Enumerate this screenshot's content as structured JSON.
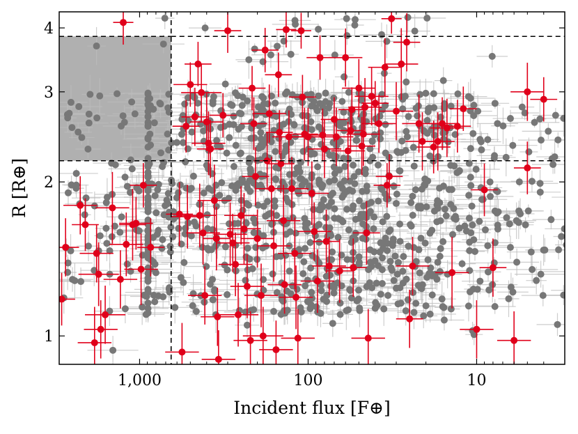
{
  "chart_data": {
    "type": "scatter",
    "title": "",
    "xlabel": "Incident flux [F⊕]",
    "ylabel": "R [R⊕]",
    "x_scale": "log",
    "x_reversed": true,
    "y_scale": "log",
    "xlim": [
      3000,
      3
    ],
    "ylim": [
      0.88,
      4.3
    ],
    "x_ticks": [
      {
        "value": 1000,
        "label": "1,000"
      },
      {
        "value": 100,
        "label": "100"
      },
      {
        "value": 10,
        "label": "10"
      }
    ],
    "y_ticks": [
      {
        "value": 1,
        "label": "1"
      },
      {
        "value": 2,
        "label": "2"
      },
      {
        "value": 3,
        "label": "3"
      },
      {
        "value": 4,
        "label": "4"
      }
    ],
    "highlight_region": {
      "x": [
        3000,
        650
      ],
      "y": [
        2.2,
        3.85
      ],
      "color": "#b0b0b0"
    },
    "dashed_lines": {
      "x": [
        650
      ],
      "y": [
        2.2,
        3.85
      ]
    },
    "grid": false,
    "colors": {
      "background_points": "#777777",
      "highlighted_points": "#e0001a",
      "error_bars_gray": "#bdbdbd",
      "error_bars_red": "#e0001a"
    },
    "series": [
      {
        "values": [
          [
            2900,
            1.18,
            0.04,
            0.18
          ],
          [
            2750,
            1.49,
            0.04,
            0.2
          ],
          [
            2250,
            1.8,
            0.05,
            0.2
          ],
          [
            2100,
            1.65,
            0.04,
            0.18
          ],
          [
            1800,
            1.45,
            0.05,
            0.2
          ],
          [
            1750,
            1.32,
            0.06,
            0.22
          ],
          [
            1850,
            0.97,
            0.05,
            0.25
          ],
          [
            1600,
            1.1,
            0.06,
            0.2
          ],
          [
            1450,
            1.78,
            0.05,
            0.25
          ],
          [
            1250,
            4.1,
            0.03,
            0.15
          ],
          [
            1200,
            1.51,
            0.05,
            0.22
          ],
          [
            1300,
            1.29,
            0.05,
            0.2
          ],
          [
            1100,
            1.65,
            0.04,
            0.25
          ],
          [
            1050,
            1.66,
            0.05,
            0.18
          ],
          [
            980,
            1.35,
            0.05,
            0.25
          ],
          [
            950,
            1.97,
            0.04,
            0.15
          ],
          [
            860,
            1.49,
            0.04,
            0.2
          ],
          [
            580,
            1.73,
            0.04,
            0.22
          ],
          [
            560,
            0.93,
            0.05,
            0.2
          ],
          [
            530,
            2.57,
            0.04,
            0.18
          ],
          [
            500,
            3.1,
            0.05,
            0.15
          ],
          [
            520,
            1.71,
            0.05,
            0.22
          ],
          [
            470,
            2.68,
            0.04,
            0.2
          ],
          [
            450,
            3.4,
            0.04,
            0.15
          ],
          [
            430,
            2.99,
            0.06,
            0.2
          ],
          [
            440,
            1.72,
            0.05,
            0.22
          ],
          [
            420,
            1.59,
            0.05,
            0.22
          ],
          [
            410,
            1.2,
            0.05,
            0.2
          ],
          [
            400,
            2.62,
            0.05,
            0.2
          ],
          [
            390,
            2.38,
            0.05,
            0.22
          ],
          [
            380,
            2.32,
            0.04,
            0.2
          ],
          [
            360,
            1.84,
            0.05,
            0.25
          ],
          [
            350,
            1.55,
            0.04,
            0.22
          ],
          [
            345,
            1.09,
            0.05,
            0.2
          ],
          [
            340,
            0.9,
            0.05,
            0.2
          ],
          [
            320,
            2.7,
            0.04,
            0.15
          ],
          [
            300,
            3.95,
            0.04,
            0.15
          ],
          [
            290,
            1.58,
            0.05,
            0.22
          ],
          [
            280,
            1.52,
            0.05,
            0.2
          ],
          [
            270,
            1.38,
            0.05,
            0.22
          ],
          [
            260,
            1.1,
            0.06,
            0.22
          ],
          [
            250,
            1.72,
            0.05,
            0.2
          ],
          [
            240,
            1.62,
            0.05,
            0.25
          ],
          [
            230,
            1.25,
            0.05,
            0.22
          ],
          [
            220,
            0.98,
            0.05,
            0.2
          ],
          [
            215,
            3.05,
            0.04,
            0.15
          ],
          [
            210,
            2.6,
            0.04,
            0.18
          ],
          [
            205,
            2.05,
            0.04,
            0.2
          ],
          [
            200,
            1.55,
            0.05,
            0.2
          ],
          [
            190,
            1.2,
            0.05,
            0.22
          ],
          [
            185,
            1.0,
            0.06,
            0.2
          ],
          [
            180,
            3.62,
            0.04,
            0.15
          ],
          [
            175,
            2.2,
            0.04,
            0.2
          ],
          [
            170,
            2.72,
            0.05,
            0.2
          ],
          [
            165,
            1.94,
            0.05,
            0.22
          ],
          [
            160,
            1.5,
            0.05,
            0.25
          ],
          [
            155,
            0.94,
            0.05,
            0.2
          ],
          [
            150,
            3.24,
            0.04,
            0.15
          ],
          [
            148,
            2.5,
            0.04,
            0.15
          ],
          [
            145,
            2.17,
            0.04,
            0.2
          ],
          [
            140,
            1.68,
            0.05,
            0.25
          ],
          [
            138,
            1.26,
            0.05,
            0.2
          ],
          [
            135,
            3.97,
            0.03,
            0.12
          ],
          [
            130,
            2.45,
            0.05,
            0.18
          ],
          [
            125,
            1.94,
            0.05,
            0.22
          ],
          [
            120,
            1.45,
            0.05,
            0.25
          ],
          [
            118,
            1.19,
            0.05,
            0.22
          ],
          [
            115,
            0.99,
            0.05,
            0.2
          ],
          [
            110,
            3.95,
            0.03,
            0.12
          ],
          [
            108,
            2.93,
            0.04,
            0.15
          ],
          [
            105,
            2.48,
            0.04,
            0.18
          ],
          [
            100,
            2.45,
            0.05,
            0.2
          ],
          [
            95,
            1.9,
            0.05,
            0.22
          ],
          [
            92,
            1.6,
            0.05,
            0.2
          ],
          [
            88,
            1.28,
            0.05,
            0.22
          ],
          [
            85,
            3.5,
            0.04,
            0.15
          ],
          [
            82,
            2.47,
            0.04,
            0.18
          ],
          [
            80,
            2.32,
            0.05,
            0.2
          ],
          [
            78,
            1.53,
            0.04,
            0.22
          ],
          [
            75,
            1.37,
            0.05,
            0.2
          ],
          [
            70,
            2.65,
            0.04,
            0.15
          ],
          [
            68,
            2.45,
            0.05,
            0.2
          ],
          [
            65,
            1.34,
            0.04,
            0.22
          ],
          [
            60,
            3.5,
            0.05,
            0.2
          ],
          [
            58,
            2.3,
            0.05,
            0.2
          ],
          [
            56,
            2.52,
            0.04,
            0.15
          ],
          [
            55,
            2.77,
            0.04,
            0.15
          ],
          [
            54,
            1.36,
            0.04,
            0.2
          ],
          [
            50,
            3.05,
            0.05,
            0.2
          ],
          [
            48,
            2.35,
            0.04,
            0.2
          ],
          [
            47,
            2.48,
            0.05,
            0.22
          ],
          [
            46,
            2.8,
            0.05,
            0.2
          ],
          [
            45,
            1.59,
            0.04,
            0.22
          ],
          [
            44,
            0.99,
            0.05,
            0.2
          ],
          [
            42,
            2.94,
            0.05,
            0.2
          ],
          [
            40,
            2.85,
            0.04,
            0.15
          ],
          [
            38,
            2.6,
            0.05,
            0.2
          ],
          [
            35,
            3.35,
            0.05,
            0.2
          ],
          [
            34,
            1.97,
            0.04,
            0.15
          ],
          [
            33,
            2.05,
            0.04,
            0.15
          ],
          [
            32,
            4.17,
            0.03,
            0.1
          ],
          [
            30,
            2.75,
            0.05,
            0.2
          ],
          [
            28,
            3.4,
            0.05,
            0.25
          ],
          [
            26,
            3.75,
            0.04,
            0.2
          ],
          [
            25,
            1.08,
            0.04,
            0.2
          ],
          [
            24,
            1.37,
            0.05,
            0.2
          ],
          [
            22,
            2.6,
            0.05,
            0.2
          ],
          [
            21,
            2.4,
            0.05,
            0.2
          ],
          [
            18,
            2.34,
            0.05,
            0.18
          ],
          [
            17,
            2.4,
            0.05,
            0.2
          ],
          [
            16,
            2.6,
            0.04,
            0.18
          ],
          [
            15,
            2.55,
            0.05,
            0.2
          ],
          [
            14,
            1.33,
            0.05,
            0.25
          ],
          [
            13,
            2.57,
            0.04,
            0.18
          ],
          [
            12,
            2.78,
            0.04,
            0.15
          ],
          [
            10,
            1.03,
            0.05,
            0.2
          ],
          [
            9,
            1.93,
            0.04,
            0.18
          ],
          [
            8,
            1.36,
            0.04,
            0.2
          ],
          [
            6,
            0.98,
            0.05,
            0.2
          ],
          [
            5,
            2.13,
            0.04,
            0.18
          ],
          [
            5,
            3.0,
            0.05,
            0.2
          ],
          [
            4,
            2.9,
            0.04,
            0.15
          ],
          [
            1700,
            1.03,
            0.05,
            0.2
          ]
        ]
      }
    ],
    "background_point_count": 1100,
    "background_seed": 7
  }
}
